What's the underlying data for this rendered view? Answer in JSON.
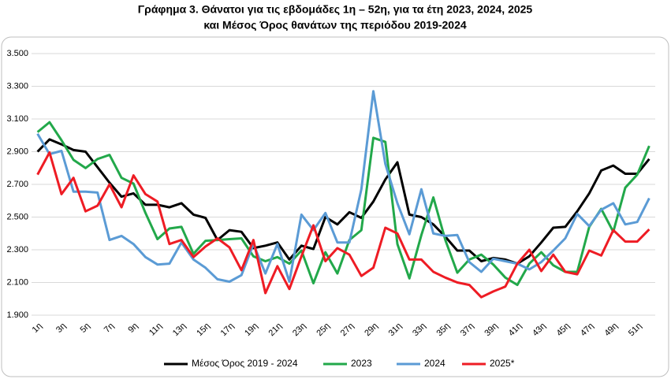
{
  "chart_data": {
    "type": "line",
    "title": [
      "Γράφημα 3. Θάνατοι για τις εβδομάδες 1η – 52η, για τα έτη 2023, 2024, 2025",
      "και Μέσος Όρος θανάτων της περιόδου 2019-2024"
    ],
    "categories": [
      "1η",
      null,
      "3η",
      null,
      "5η",
      null,
      "7η",
      null,
      "9η",
      null,
      "11η",
      null,
      "13η",
      null,
      "15η",
      null,
      "17η",
      null,
      "19η",
      null,
      "21η",
      null,
      "23η",
      null,
      "25η",
      null,
      "27η",
      null,
      "29η",
      null,
      "31η",
      null,
      "33η",
      null,
      "35η",
      null,
      "37η",
      null,
      "39η",
      null,
      "41η",
      null,
      "43η",
      null,
      "45η",
      null,
      "47η",
      null,
      "49η",
      null,
      "51η",
      null
    ],
    "series": [
      {
        "name": "Μέσος Όρος 2019 - 2024",
        "color": "#000000",
        "values": [
          2900,
          2975,
          2945,
          2910,
          2900,
          2805,
          2710,
          2625,
          2645,
          2575,
          2575,
          2560,
          2585,
          2515,
          2495,
          2360,
          2420,
          2410,
          2310,
          2325,
          2345,
          2240,
          2325,
          2305,
          2500,
          2455,
          2530,
          2495,
          2595,
          2730,
          2835,
          2515,
          2500,
          2455,
          2380,
          2295,
          2295,
          2230,
          2250,
          2240,
          2215,
          2260,
          2345,
          2435,
          2440,
          2535,
          2645,
          2785,
          2815,
          2765,
          2765,
          2855
        ]
      },
      {
        "name": "2023",
        "color": "#22a84a",
        "values": [
          3020,
          3080,
          2970,
          2850,
          2800,
          2855,
          2880,
          2740,
          2705,
          2525,
          2365,
          2430,
          2440,
          2275,
          2355,
          2360,
          2365,
          2370,
          2260,
          2230,
          2255,
          2215,
          2295,
          2095,
          2285,
          2155,
          2360,
          2420,
          2985,
          2960,
          2335,
          2125,
          2390,
          2620,
          2360,
          2160,
          2240,
          2270,
          2210,
          2130,
          2085,
          2215,
          2285,
          2205,
          2165,
          2165,
          2440,
          2550,
          2410,
          2680,
          2760,
          2935
        ]
      },
      {
        "name": "2024",
        "color": "#5b9bd5",
        "values": [
          3010,
          2885,
          2905,
          2655,
          2655,
          2650,
          2360,
          2385,
          2335,
          2255,
          2210,
          2215,
          2345,
          2240,
          2190,
          2120,
          2105,
          2145,
          2335,
          2155,
          2335,
          2105,
          2515,
          2420,
          2525,
          2345,
          2345,
          2670,
          3270,
          2825,
          2585,
          2395,
          2670,
          2400,
          2385,
          2390,
          2225,
          2165,
          2245,
          2230,
          2215,
          2180,
          2225,
          2295,
          2370,
          2520,
          2445,
          2545,
          2585,
          2455,
          2470,
          2615
        ]
      },
      {
        "name": "2025*",
        "color": "#ee1c24",
        "values": [
          2760,
          2895,
          2640,
          2740,
          2535,
          2570,
          2700,
          2560,
          2755,
          2640,
          2595,
          2335,
          2360,
          2255,
          2320,
          2370,
          2315,
          2175,
          2360,
          2035,
          2200,
          2060,
          2260,
          2450,
          2230,
          2310,
          2270,
          2140,
          2190,
          2435,
          2400,
          2240,
          2240,
          2165,
          2130,
          2100,
          2085,
          2010,
          2045,
          2075,
          2215,
          2300,
          2170,
          2270,
          2165,
          2150,
          2295,
          2265,
          2420,
          2350,
          2350,
          2425
        ]
      }
    ],
    "ylim": [
      1900,
      3500
    ],
    "yticks": [
      {
        "value": 1900,
        "label": "1.900"
      },
      {
        "value": 2100,
        "label": "2.100"
      },
      {
        "value": 2300,
        "label": "2.300"
      },
      {
        "value": 2500,
        "label": "2.500"
      },
      {
        "value": 2700,
        "label": "2.700"
      },
      {
        "value": 2900,
        "label": "2.900"
      },
      {
        "value": 3100,
        "label": "3.100"
      },
      {
        "value": 3300,
        "label": "3.300"
      },
      {
        "value": 3500,
        "label": "3.500"
      }
    ],
    "grid": true
  }
}
